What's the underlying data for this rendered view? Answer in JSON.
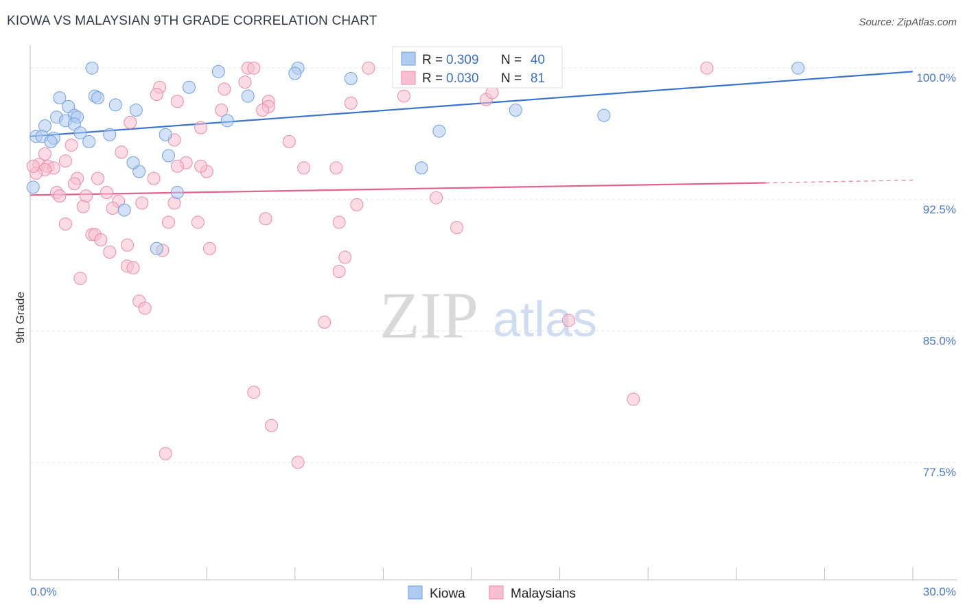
{
  "header": {
    "title": "KIOWA VS MALAYSIAN 9TH GRADE CORRELATION CHART",
    "source": "Source: ZipAtlas.com"
  },
  "watermark": {
    "zip": "ZIP",
    "atlas": "atlas"
  },
  "legend_box": {
    "rows": [
      {
        "r_label": "R =",
        "r_value": "0.309",
        "n_label": "N =",
        "n_value": "40"
      },
      {
        "r_label": "R =",
        "r_value": "0.030",
        "n_label": "N =",
        "n_value": "81"
      }
    ]
  },
  "colors": {
    "kiowa_fill": "#aecbf0",
    "kiowa_stroke": "#6f9fe0",
    "kiowa_line": "#3b73cc",
    "malay_fill": "#f7bfd0",
    "malay_stroke": "#eb8aa9",
    "malay_line": "#e2648c",
    "tick_color": "#4a77c9"
  },
  "chart_data": {
    "type": "scatter",
    "title": "KIOWA VS MALAYSIAN 9TH GRADE CORRELATION CHART",
    "xlabel": "",
    "ylabel": "9th Grade",
    "xlim": [
      0,
      30
    ],
    "ylim": [
      70.8,
      101.3
    ],
    "x_tick_labels": [
      "0.0%",
      "30.0%"
    ],
    "y_ticks": [
      77.5,
      85.0,
      92.5,
      100.0
    ],
    "y_tick_labels": [
      "77.5%",
      "85.0%",
      "92.5%",
      "100.0%"
    ],
    "grid": true,
    "legend_placement": "bottom-center",
    "series": [
      {
        "name": "Kiowa",
        "R": 0.309,
        "N": 40,
        "trend": {
          "x": [
            0,
            30
          ],
          "y": [
            96.1,
            99.8
          ]
        },
        "points": [
          {
            "x": 2.1,
            "y": 100.0
          },
          {
            "x": 6.4,
            "y": 99.8
          },
          {
            "x": 9.1,
            "y": 100.0
          },
          {
            "x": 9.0,
            "y": 99.7
          },
          {
            "x": 26.1,
            "y": 100.0
          },
          {
            "x": 10.9,
            "y": 99.4
          },
          {
            "x": 5.4,
            "y": 98.9
          },
          {
            "x": 2.2,
            "y": 98.4
          },
          {
            "x": 7.4,
            "y": 98.4
          },
          {
            "x": 1.0,
            "y": 98.3
          },
          {
            "x": 2.3,
            "y": 98.3
          },
          {
            "x": 2.9,
            "y": 97.9
          },
          {
            "x": 1.3,
            "y": 97.8
          },
          {
            "x": 3.6,
            "y": 97.6
          },
          {
            "x": 16.5,
            "y": 97.6
          },
          {
            "x": 19.5,
            "y": 97.3
          },
          {
            "x": 1.5,
            "y": 97.3
          },
          {
            "x": 0.9,
            "y": 97.2
          },
          {
            "x": 1.6,
            "y": 97.2
          },
          {
            "x": 1.2,
            "y": 97.0
          },
          {
            "x": 6.7,
            "y": 97.0
          },
          {
            "x": 1.5,
            "y": 96.8
          },
          {
            "x": 0.5,
            "y": 96.7
          },
          {
            "x": 13.9,
            "y": 96.4
          },
          {
            "x": 1.7,
            "y": 96.3
          },
          {
            "x": 2.7,
            "y": 96.2
          },
          {
            "x": 4.6,
            "y": 96.2
          },
          {
            "x": 0.2,
            "y": 96.1
          },
          {
            "x": 0.4,
            "y": 96.1
          },
          {
            "x": 0.8,
            "y": 96.0
          },
          {
            "x": 0.7,
            "y": 95.8
          },
          {
            "x": 2.0,
            "y": 95.8
          },
          {
            "x": 4.7,
            "y": 95.0
          },
          {
            "x": 3.7,
            "y": 94.1
          },
          {
            "x": 13.3,
            "y": 94.3
          },
          {
            "x": 0.1,
            "y": 93.2
          },
          {
            "x": 5.0,
            "y": 92.9
          },
          {
            "x": 3.2,
            "y": 91.9
          },
          {
            "x": 4.3,
            "y": 89.7
          },
          {
            "x": 3.5,
            "y": 94.6
          }
        ]
      },
      {
        "name": "Malaysians",
        "R": 0.03,
        "N": 81,
        "trend": {
          "x": [
            0,
            25
          ],
          "y": [
            92.75,
            93.45
          ]
        },
        "trend_dashed": {
          "x": [
            25,
            30
          ],
          "y": [
            93.45,
            93.6
          ]
        },
        "points": [
          {
            "x": 7.4,
            "y": 100.0
          },
          {
            "x": 7.6,
            "y": 100.0
          },
          {
            "x": 11.5,
            "y": 100.0
          },
          {
            "x": 14.2,
            "y": 100.0
          },
          {
            "x": 16.0,
            "y": 100.0
          },
          {
            "x": 23.0,
            "y": 100.0
          },
          {
            "x": 7.3,
            "y": 99.2
          },
          {
            "x": 4.4,
            "y": 98.9
          },
          {
            "x": 6.6,
            "y": 98.8
          },
          {
            "x": 4.3,
            "y": 98.5
          },
          {
            "x": 12.7,
            "y": 98.4
          },
          {
            "x": 15.5,
            "y": 98.2
          },
          {
            "x": 5.0,
            "y": 98.1
          },
          {
            "x": 10.9,
            "y": 98.0
          },
          {
            "x": 8.1,
            "y": 98.1
          },
          {
            "x": 8.1,
            "y": 97.8
          },
          {
            "x": 7.9,
            "y": 97.6
          },
          {
            "x": 6.5,
            "y": 97.6
          },
          {
            "x": 3.4,
            "y": 96.9
          },
          {
            "x": 5.8,
            "y": 96.6
          },
          {
            "x": 4.9,
            "y": 95.9
          },
          {
            "x": 8.8,
            "y": 95.8
          },
          {
            "x": 1.4,
            "y": 95.6
          },
          {
            "x": 3.1,
            "y": 95.2
          },
          {
            "x": 0.5,
            "y": 95.1
          },
          {
            "x": 1.2,
            "y": 94.7
          },
          {
            "x": 5.3,
            "y": 94.6
          },
          {
            "x": 5.0,
            "y": 94.4
          },
          {
            "x": 0.3,
            "y": 94.5
          },
          {
            "x": 0.6,
            "y": 94.4
          },
          {
            "x": 0.8,
            "y": 94.3
          },
          {
            "x": 9.3,
            "y": 94.3
          },
          {
            "x": 10.4,
            "y": 94.3
          },
          {
            "x": 0.5,
            "y": 94.2
          },
          {
            "x": 6.0,
            "y": 94.1
          },
          {
            "x": 0.2,
            "y": 94.0
          },
          {
            "x": 1.6,
            "y": 93.7
          },
          {
            "x": 2.3,
            "y": 93.7
          },
          {
            "x": 4.2,
            "y": 93.7
          },
          {
            "x": 1.5,
            "y": 93.4
          },
          {
            "x": 0.9,
            "y": 92.9
          },
          {
            "x": 2.6,
            "y": 92.9
          },
          {
            "x": 1.0,
            "y": 92.7
          },
          {
            "x": 1.9,
            "y": 92.7
          },
          {
            "x": 13.8,
            "y": 92.6
          },
          {
            "x": 3.0,
            "y": 92.4
          },
          {
            "x": 3.8,
            "y": 92.3
          },
          {
            "x": 4.9,
            "y": 92.3
          },
          {
            "x": 1.8,
            "y": 92.1
          },
          {
            "x": 11.1,
            "y": 92.2
          },
          {
            "x": 2.8,
            "y": 92.0
          },
          {
            "x": 8.0,
            "y": 91.4
          },
          {
            "x": 5.7,
            "y": 91.2
          },
          {
            "x": 10.5,
            "y": 91.2
          },
          {
            "x": 1.2,
            "y": 91.1
          },
          {
            "x": 4.7,
            "y": 91.2
          },
          {
            "x": 14.5,
            "y": 90.9
          },
          {
            "x": 2.1,
            "y": 90.5
          },
          {
            "x": 2.2,
            "y": 90.5
          },
          {
            "x": 2.4,
            "y": 90.2
          },
          {
            "x": 3.3,
            "y": 89.9
          },
          {
            "x": 6.1,
            "y": 89.7
          },
          {
            "x": 4.5,
            "y": 89.6
          },
          {
            "x": 2.7,
            "y": 89.5
          },
          {
            "x": 10.7,
            "y": 89.2
          },
          {
            "x": 3.3,
            "y": 88.7
          },
          {
            "x": 3.5,
            "y": 88.6
          },
          {
            "x": 10.5,
            "y": 88.4
          },
          {
            "x": 1.7,
            "y": 88.0
          },
          {
            "x": 3.7,
            "y": 86.7
          },
          {
            "x": 3.9,
            "y": 86.3
          },
          {
            "x": 10.0,
            "y": 85.5
          },
          {
            "x": 18.3,
            "y": 85.6
          },
          {
            "x": 7.6,
            "y": 81.5
          },
          {
            "x": 20.5,
            "y": 81.1
          },
          {
            "x": 8.2,
            "y": 79.6
          },
          {
            "x": 4.6,
            "y": 78.0
          },
          {
            "x": 9.1,
            "y": 77.5
          },
          {
            "x": 15.7,
            "y": 98.6
          },
          {
            "x": 5.8,
            "y": 94.4
          },
          {
            "x": 0.1,
            "y": 94.4
          }
        ]
      }
    ]
  },
  "bottom_legend": [
    {
      "label": "Kiowa"
    },
    {
      "label": "Malaysians"
    }
  ]
}
